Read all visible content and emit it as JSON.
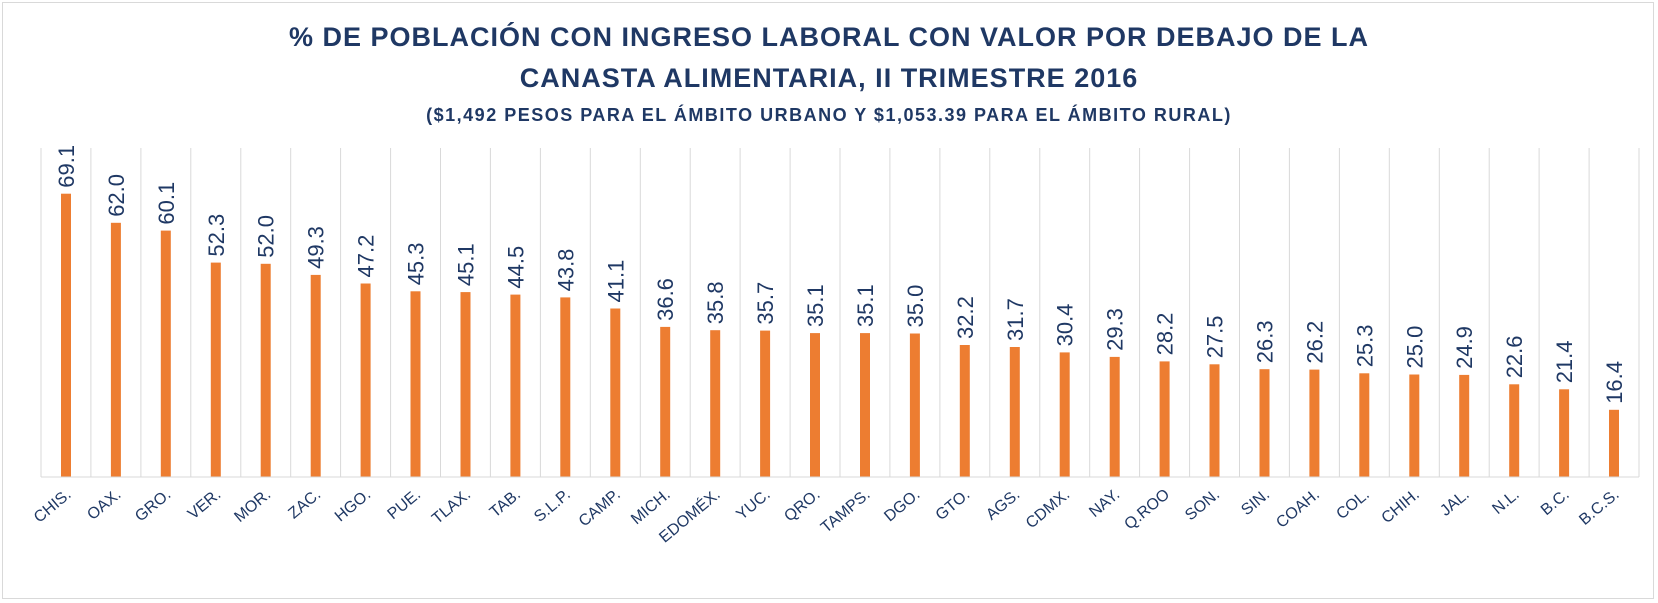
{
  "chart_data": {
    "type": "bar",
    "title_line1": "% DE POBLACIÓN CON INGRESO LABORAL CON VALOR POR DEBAJO DE LA",
    "title_line2": "CANASTA ALIMENTARIA, II TRIMESTRE 2016",
    "subtitle": "($1,492 PESOS PARA EL ÁMBITO URBANO Y $1,053.39 PARA EL ÁMBITO RURAL)",
    "categories": [
      "CHIS.",
      "OAX.",
      "GRO.",
      "VER.",
      "MOR.",
      "ZAC.",
      "HGO.",
      "PUE.",
      "TLAX.",
      "TAB.",
      "S.L.P.",
      "CAMP.",
      "MICH.",
      "EDOMÉX.",
      "YUC.",
      "QRO.",
      "TAMPS.",
      "DGO.",
      "GTO.",
      "AGS.",
      "CDMX.",
      "NAY.",
      "Q.ROO",
      "SON.",
      "SIN.",
      "COAH.",
      "COL.",
      "CHIH.",
      "JAL.",
      "N.L.",
      "B.C.",
      "B.C.S."
    ],
    "values": [
      69.1,
      62.0,
      60.1,
      52.3,
      52.0,
      49.3,
      47.2,
      45.3,
      45.1,
      44.5,
      43.8,
      41.1,
      36.6,
      35.8,
      35.7,
      35.1,
      35.1,
      35.0,
      32.2,
      31.7,
      30.4,
      29.3,
      28.2,
      27.5,
      26.3,
      26.2,
      25.3,
      25.0,
      24.9,
      22.6,
      21.4,
      16.4
    ],
    "data_labels": [
      "69.1",
      "62.0",
      "60.1",
      "52.3",
      "52.0",
      "49.3",
      "47.2",
      "45.3",
      "45.1",
      "44.5",
      "43.8",
      "41.1",
      "36.6",
      "35.8",
      "35.7",
      "35.1",
      "35.1",
      "35.0",
      "32.2",
      "31.7",
      "30.4",
      "29.3",
      "28.2",
      "27.5",
      "26.3",
      "26.2",
      "25.3",
      "25.0",
      "24.9",
      "22.6",
      "21.4",
      "16.4"
    ],
    "ylim": [
      0,
      80
    ],
    "grid": "vertical separators",
    "legend": "none",
    "bar_color": "#ed7d31",
    "text_color": "#1f3864",
    "grid_color": "#d9d9d9"
  }
}
